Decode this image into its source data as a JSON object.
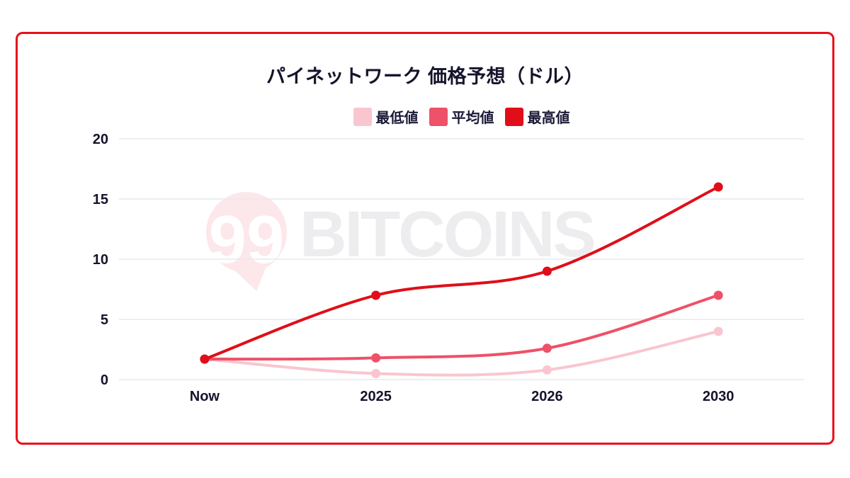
{
  "page": {
    "watermark": {
      "badge": "99",
      "text": "BITCOINS"
    }
  },
  "colors": {
    "card_border": "#E8101C",
    "background": "#FFFFFF",
    "title_text": "#15142B",
    "axis_text": "#15142B",
    "legend_text": "#1B1A38",
    "gridline": "#E7E9EF",
    "watermark_text": "#EDEDEF",
    "watermark_badge_pink": "#FCE7EB",
    "watermark_badge_digits": "#FFFFFF"
  },
  "chart_data": {
    "type": "line",
    "title": "パイネットワーク 価格予想（ドル）",
    "categories": [
      "Now",
      "2025",
      "2026",
      "2030"
    ],
    "series": [
      {
        "id": "min",
        "name": "最低値",
        "color": "#F9C6D0",
        "values": [
          1.7,
          0.5,
          0.8,
          4
        ]
      },
      {
        "id": "avg",
        "name": "平均値",
        "color": "#EE5168",
        "values": [
          1.7,
          1.8,
          2.6,
          7
        ]
      },
      {
        "id": "max",
        "name": "最高値",
        "color": "#E00E18",
        "values": [
          1.7,
          7,
          9,
          16
        ]
      }
    ],
    "ylim": [
      0,
      20
    ],
    "y_ticks": [
      0,
      5,
      10,
      15,
      20
    ],
    "xlabel": "",
    "ylabel": "",
    "grid": true,
    "legend_position": "top",
    "line_smoothing": true,
    "point_style": "circle"
  }
}
